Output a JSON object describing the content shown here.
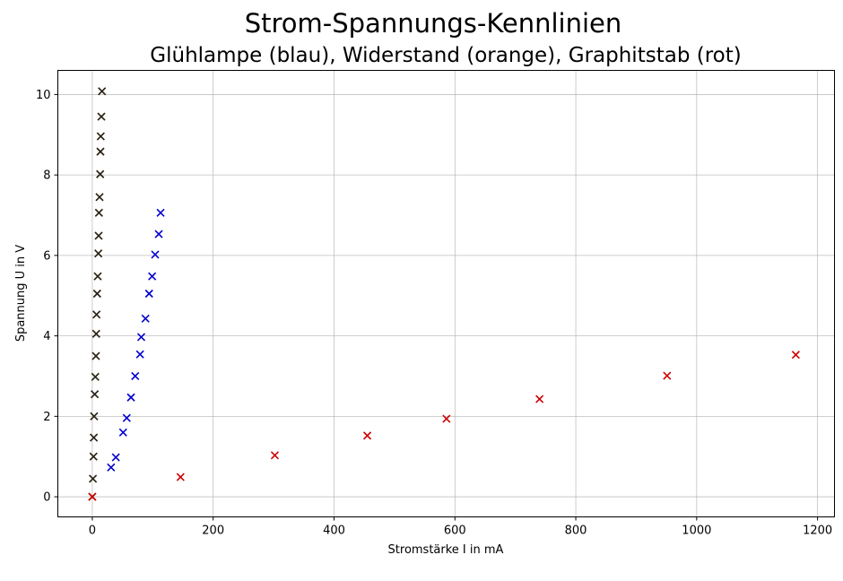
{
  "chart_data": {
    "type": "scatter",
    "title": "Strom-Spannungs-Kennlinien",
    "subtitle": "Glühlampe (blau), Widerstand (orange), Graphitstab (rot)",
    "xlabel": "Stromstärke I in mA",
    "ylabel": "Spannung U in V",
    "xlim": [
      -57,
      1228
    ],
    "ylim": [
      -0.5,
      10.6
    ],
    "xticks": [
      0,
      200,
      400,
      600,
      800,
      1000,
      1200
    ],
    "yticks": [
      0,
      2,
      4,
      6,
      8,
      10
    ],
    "grid": true,
    "marker": "x",
    "series": [
      {
        "color": "#0000cc",
        "x": [
          31,
          39,
          51,
          57,
          64,
          71,
          79,
          81,
          88,
          94,
          99,
          104,
          110,
          113
        ],
        "y": [
          0.73,
          0.98,
          1.6,
          1.96,
          2.47,
          3.0,
          3.54,
          3.97,
          4.43,
          5.05,
          5.48,
          6.02,
          6.53,
          7.06
        ]
      },
      {
        "color": "#ffa500",
        "x": [
          0,
          1,
          2,
          2.5,
          3,
          4,
          5,
          6,
          6.5,
          7,
          8,
          9,
          10,
          10.5,
          11,
          12,
          13,
          13.5,
          14,
          15
        ],
        "y": [
          0.0,
          0.45,
          1.0,
          1.47,
          2.0,
          2.55,
          2.98,
          3.5,
          4.05,
          4.53,
          5.05,
          5.48,
          6.05,
          6.49,
          7.06,
          7.45,
          8.02,
          8.58,
          8.96,
          9.45
        ],
        "extra": {
          "x": 16,
          "y": 10.08
        }
      },
      {
        "color": "#cc0000",
        "x": [
          0,
          146,
          302,
          455,
          586,
          740,
          951,
          1164
        ],
        "y": [
          0.0,
          0.49,
          1.03,
          1.52,
          1.94,
          2.43,
          3.01,
          3.53
        ]
      }
    ]
  }
}
